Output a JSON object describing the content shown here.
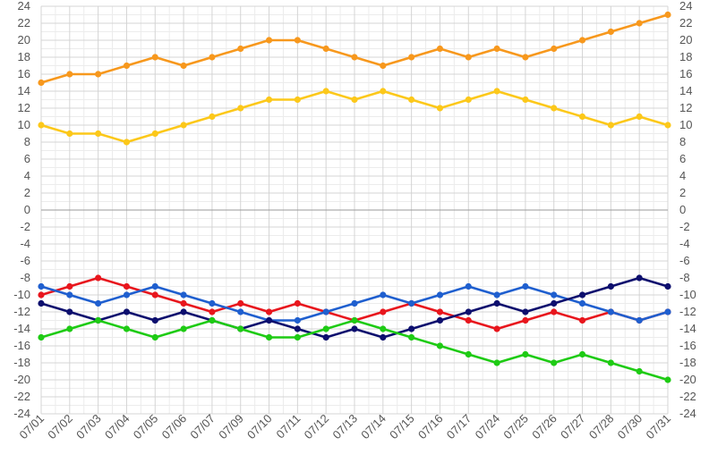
{
  "chart_data": {
    "type": "line",
    "categories": [
      "07/01",
      "07/02",
      "07/03",
      "07/04",
      "07/05",
      "07/06",
      "07/07",
      "07/09",
      "07/10",
      "07/11",
      "07/12",
      "07/13",
      "07/14",
      "07/15",
      "07/16",
      "07/17",
      "07/24",
      "07/25",
      "07/26",
      "07/27",
      "07/28",
      "07/30",
      "07/31"
    ],
    "ylim": [
      -24,
      24
    ],
    "y_ticks": [
      24,
      22,
      20,
      18,
      16,
      14,
      12,
      10,
      8,
      6,
      4,
      2,
      0,
      -2,
      -4,
      -6,
      -8,
      -10,
      -12,
      -14,
      -16,
      -18,
      -20,
      -22,
      -24
    ],
    "y_axis_both_sides": true,
    "grid": true,
    "legend": "none",
    "series": [
      {
        "color": "#f7981d",
        "values": [
          15,
          16,
          16,
          17,
          18,
          17,
          18,
          19,
          20,
          20,
          19,
          18,
          17,
          18,
          19,
          18,
          19,
          18,
          19,
          20,
          21,
          22,
          23
        ]
      },
      {
        "color": "#fcc81a",
        "values": [
          10,
          9,
          9,
          8,
          9,
          10,
          11,
          12,
          13,
          13,
          14,
          13,
          14,
          13,
          12,
          13,
          14,
          13,
          12,
          11,
          10,
          11,
          10
        ]
      },
      {
        "color": "#e8161d",
        "values": [
          -10,
          -9,
          -8,
          -9,
          -10,
          -11,
          -12,
          -11,
          -12,
          -11,
          -12,
          -13,
          -12,
          -11,
          -12,
          -13,
          -14,
          -13,
          -12,
          -13,
          -12,
          -13,
          -12
        ]
      },
      {
        "color": "#1f5fcf",
        "values": [
          -9,
          -10,
          -11,
          -10,
          -9,
          -10,
          -11,
          -12,
          -13,
          -13,
          -12,
          -11,
          -10,
          -11,
          -10,
          -9,
          -10,
          -9,
          -10,
          -11,
          -12,
          -13,
          -12
        ]
      },
      {
        "color": "#0d0f6e",
        "values": [
          -11,
          -12,
          -13,
          -12,
          -13,
          -12,
          -13,
          -14,
          -13,
          -14,
          -15,
          -14,
          -15,
          -14,
          -13,
          -12,
          -11,
          -12,
          -11,
          -10,
          -9,
          -8,
          -9
        ]
      },
      {
        "color": "#1ecb14",
        "values": [
          -15,
          -14,
          -13,
          -14,
          -15,
          -14,
          -13,
          -14,
          -15,
          -15,
          -14,
          -13,
          -14,
          -15,
          -16,
          -17,
          -18,
          -17,
          -18,
          -17,
          -18,
          -19,
          -20
        ]
      }
    ]
  }
}
